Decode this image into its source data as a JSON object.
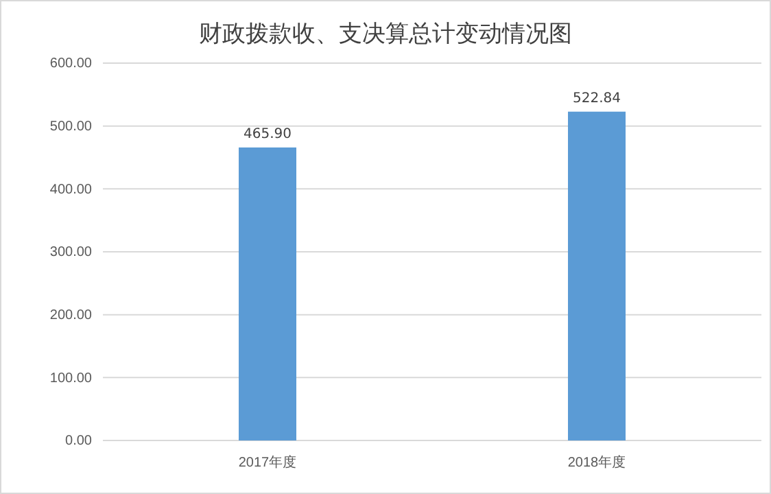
{
  "chart_data": {
    "type": "bar",
    "title": "财政拨款收、支决算总计变动情况图",
    "categories": [
      "2017年度",
      "2018年度"
    ],
    "values": [
      465.9,
      522.84
    ],
    "value_labels": [
      "465.90",
      "522.84"
    ],
    "color": "#5b9bd5",
    "ylim": [
      0,
      600
    ],
    "yticks": [
      {
        "value": 0,
        "label": "0.00"
      },
      {
        "value": 100,
        "label": "100.00"
      },
      {
        "value": 200,
        "label": "200.00"
      },
      {
        "value": 300,
        "label": "300.00"
      },
      {
        "value": 400,
        "label": "400.00"
      },
      {
        "value": 500,
        "label": "500.00"
      },
      {
        "value": 600,
        "label": "600.00"
      }
    ],
    "grid": "y"
  }
}
